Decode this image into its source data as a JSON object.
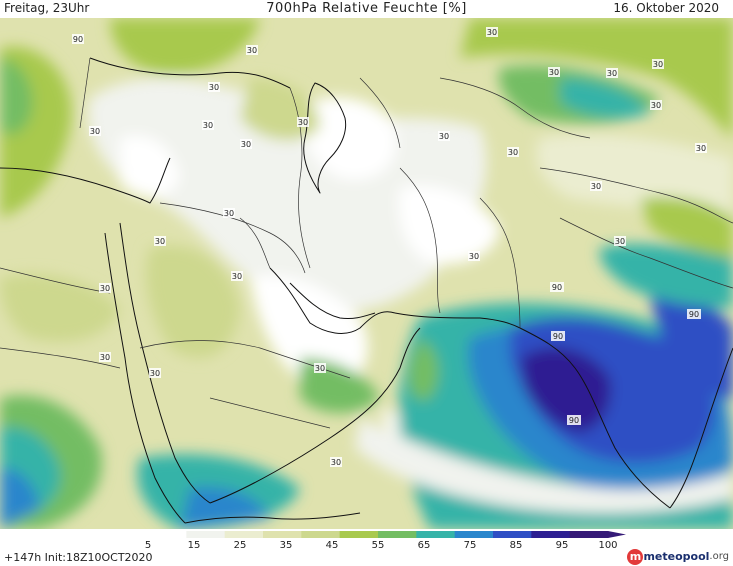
{
  "header": {
    "left": "Freitag, 23Uhr",
    "title": "700hPa Relative Feuchte [%]",
    "right": "16. Oktober 2020"
  },
  "footer": {
    "run_info": "+147h Init:18Z10OCT2020",
    "logo_name": "meteopool",
    "logo_domain": ".org"
  },
  "colorbar": {
    "ticks": [
      "5",
      "15",
      "25",
      "35",
      "45",
      "55",
      "65",
      "75",
      "85",
      "95",
      "100"
    ],
    "colors": [
      "#ffffff",
      "#f1f3ee",
      "#ebedd0",
      "#dfe2ae",
      "#cdd88e",
      "#a8c94e",
      "#73bd63",
      "#36b3a8",
      "#2a86cc",
      "#2f4fc4",
      "#2d1f92",
      "#351a77"
    ]
  },
  "contour_labels": [
    {
      "id": "lbl-90-greece",
      "text": "90"
    },
    {
      "id": "lbl-30-a",
      "text": "30"
    },
    {
      "id": "lbl-30-b",
      "text": "30"
    },
    {
      "id": "lbl-30-c",
      "text": "30"
    },
    {
      "id": "lbl-30-d",
      "text": "30"
    },
    {
      "id": "lbl-30-e",
      "text": "30"
    },
    {
      "id": "lbl-30-f",
      "text": "30"
    },
    {
      "id": "lbl-30-g",
      "text": "30"
    },
    {
      "id": "lbl-30-h",
      "text": "30"
    },
    {
      "id": "lbl-30-i",
      "text": "30"
    },
    {
      "id": "lbl-30-j",
      "text": "30"
    },
    {
      "id": "lbl-30-k",
      "text": "30"
    },
    {
      "id": "lbl-30-l",
      "text": "30"
    },
    {
      "id": "lbl-30-m",
      "text": "30"
    },
    {
      "id": "lbl-30-n",
      "text": "30"
    },
    {
      "id": "lbl-30-o",
      "text": "30"
    },
    {
      "id": "lbl-30-p",
      "text": "30"
    },
    {
      "id": "lbl-30-q",
      "text": "30"
    },
    {
      "id": "lbl-30-r",
      "text": "30"
    },
    {
      "id": "lbl-30-s",
      "text": "30"
    },
    {
      "id": "lbl-30-t",
      "text": "30"
    },
    {
      "id": "lbl-30-u",
      "text": "30"
    },
    {
      "id": "lbl-30-v",
      "text": "30"
    },
    {
      "id": "lbl-30-w",
      "text": "30"
    },
    {
      "id": "lbl-30-x",
      "text": "30"
    },
    {
      "id": "lbl-30-y",
      "text": "30"
    },
    {
      "id": "lbl-90-arab-n",
      "text": "90"
    },
    {
      "id": "lbl-90-arab-c",
      "text": "90"
    },
    {
      "id": "lbl-90-arab-s",
      "text": "90"
    },
    {
      "id": "lbl-90-bengal",
      "text": "90"
    }
  ]
}
